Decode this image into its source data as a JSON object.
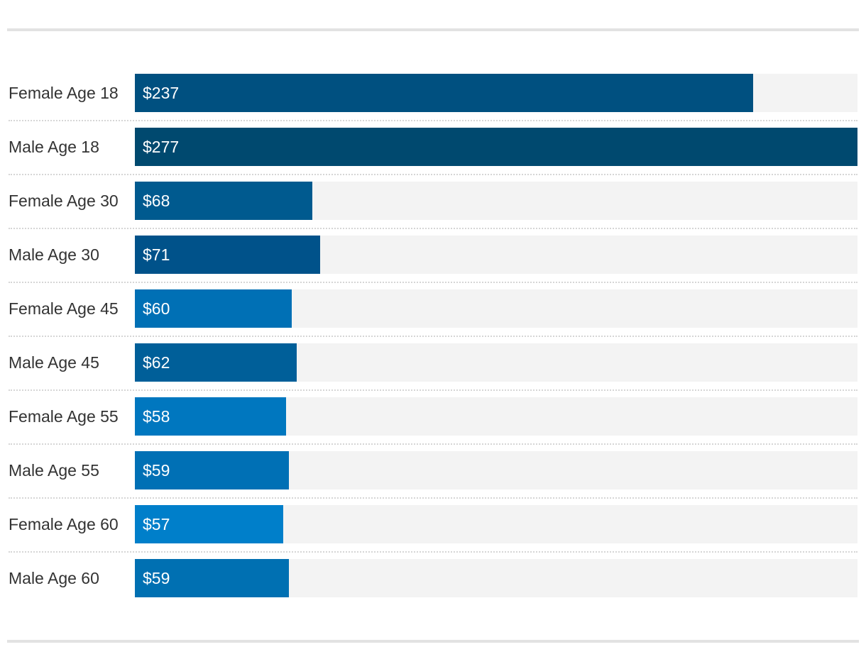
{
  "chart_data": {
    "type": "bar",
    "orientation": "horizontal",
    "categories": [
      "Female Age 18",
      "Male Age 18",
      "Female Age 30",
      "Male Age 30",
      "Female Age 45",
      "Male Age 45",
      "Female Age 55",
      "Male Age 55",
      "Female Age 60",
      "Male Age 60"
    ],
    "values": [
      237,
      277,
      68,
      71,
      60,
      62,
      58,
      59,
      57,
      59
    ],
    "value_labels": [
      "$237",
      "$277",
      "$68",
      "$71",
      "$60",
      "$62",
      "$58",
      "$59",
      "$57",
      "$59"
    ],
    "xlim": [
      0,
      277
    ],
    "colors": [
      "#005080",
      "#00496f",
      "#005a8f",
      "#00528a",
      "#0070b5",
      "#005f99",
      "#0077bf",
      "#0070b5",
      "#007fca",
      "#0070b2"
    ],
    "track_color": "#f3f3f3",
    "title": "",
    "xlabel": "",
    "ylabel": "",
    "grid": false,
    "legend": "none"
  }
}
